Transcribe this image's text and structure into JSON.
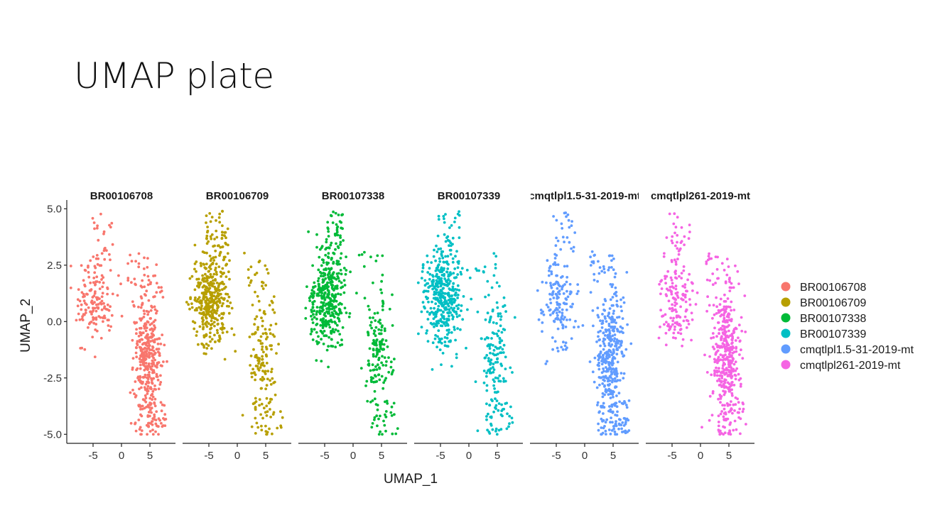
{
  "slide": {
    "title": "UMAP plate"
  },
  "chart_data": {
    "type": "scatter",
    "layout": "faceted-panels",
    "xlabel": "UMAP_1",
    "ylabel": "UMAP_2",
    "xlim": [
      -9.5,
      9.5
    ],
    "ylim": [
      -5.4,
      5.2
    ],
    "xticks": [
      -5,
      0,
      5
    ],
    "xtick_labels": [
      "-5",
      "0",
      "5"
    ],
    "yticks": [
      5.0,
      2.5,
      0.0,
      -2.5,
      -5.0
    ],
    "ytick_labels": [
      "5.0",
      "2.5",
      "0.0",
      "-2.5",
      "-5.0"
    ],
    "grid": false,
    "legend_position": "right",
    "panels": [
      {
        "title": "BR00106708",
        "color": "#F8766D",
        "dense": "right"
      },
      {
        "title": "BR00106709",
        "color": "#B79F00",
        "dense": "left"
      },
      {
        "title": "BR00107338",
        "color": "#00BA38",
        "dense": "left"
      },
      {
        "title": "BR00107339",
        "color": "#00BFC4",
        "dense": "left"
      },
      {
        "title": "cmqtlpl1.5-31-2019-mt",
        "color": "#619CFF",
        "dense": "right"
      },
      {
        "title": "cmqtlpl261-2019-mt",
        "color": "#F564E3",
        "dense": "right"
      }
    ],
    "clusters": [
      {
        "name": "left cluster",
        "x_center": -4.5,
        "y_center": 1.0,
        "x_spread": 2.2,
        "y_spread": 1.3
      },
      {
        "name": "right cluster",
        "x_center": 4.5,
        "y_center": -1.5,
        "x_spread": 1.6,
        "y_spread": 1.8
      }
    ],
    "legend": [
      {
        "label": "BR00106708",
        "color": "#F8766D"
      },
      {
        "label": "BR00106709",
        "color": "#B79F00"
      },
      {
        "label": "BR00107338",
        "color": "#00BA38"
      },
      {
        "label": "BR00107339",
        "color": "#00BFC4"
      },
      {
        "label": "cmqtlpl1.5-31-2019-mt",
        "color": "#619CFF"
      },
      {
        "label": "cmqtlpl261-2019-mt",
        "color": "#F564E3"
      }
    ]
  }
}
